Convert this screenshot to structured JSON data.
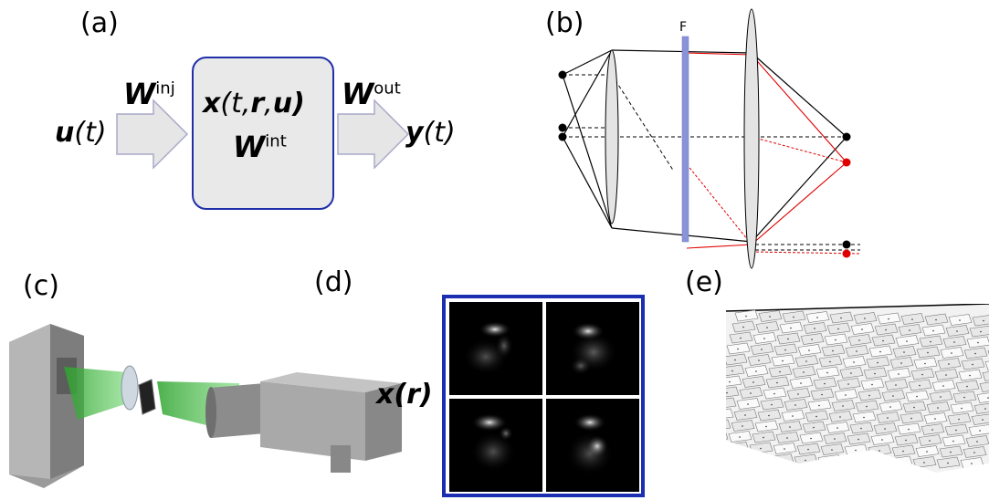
{
  "panels": {
    "a": {
      "label": "(a)",
      "input": "u",
      "input_arg": "(t)",
      "injection_weight": "W",
      "injection_sup": "inj",
      "state": "x",
      "state_args_1": "(t,",
      "state_r": "r",
      "state_comma": ",",
      "state_u": "u",
      "state_close": ")",
      "internal_weight": "W",
      "internal_sup": "int",
      "output_weight": "W",
      "output_sup": "out",
      "output": "y",
      "output_arg": "(t)"
    },
    "b": {
      "label": "(b)",
      "filter_label": "F"
    },
    "c": {
      "label": "(c)"
    },
    "d": {
      "label": "(d)",
      "state": "x",
      "state_open": "(",
      "state_r": "r",
      "state_close": ")"
    },
    "e": {
      "label": "(e)"
    }
  },
  "colors": {
    "box_border": "#1f2fa8",
    "box_fill": "#e9e9e9",
    "arrow_fill": "#e6e6e6",
    "arrow_stroke": "#a9a9c8",
    "filter": "#8a93d8",
    "ray_red": "#e00000",
    "frame_blue": "#1c2eb0",
    "laser_green": "#2fa32f"
  }
}
